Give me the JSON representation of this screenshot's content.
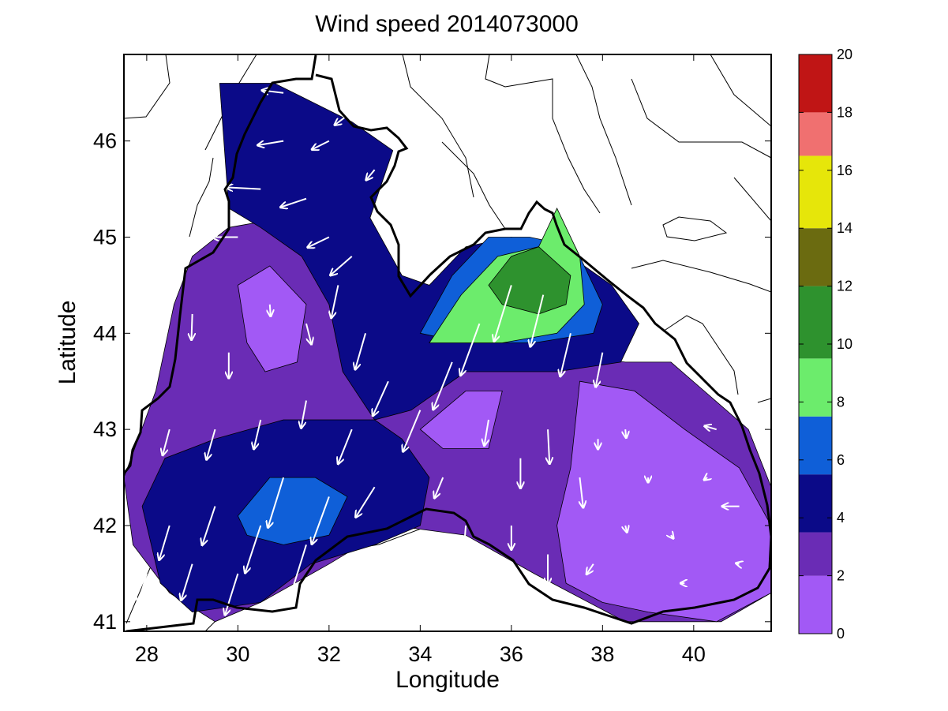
{
  "chart_data": {
    "type": "contour-quiver",
    "title": "Wind speed 2014073000",
    "xlabel": "Longitude",
    "ylabel": "Latitude",
    "xlim": [
      27.5,
      41.7
    ],
    "ylim": [
      40.9,
      46.9
    ],
    "x_ticks": [
      28,
      30,
      32,
      34,
      36,
      38,
      40
    ],
    "x_tick_labels": [
      "28",
      "30",
      "32",
      "34",
      "36",
      "38",
      "40"
    ],
    "y_ticks": [
      41,
      42,
      43,
      44,
      45,
      46
    ],
    "y_tick_labels": [
      "41",
      "42",
      "43",
      "44",
      "45",
      "46"
    ],
    "grid": false,
    "colorbar": {
      "min": 0,
      "max": 20,
      "ticks": [
        0,
        2,
        4,
        6,
        8,
        10,
        12,
        14,
        16,
        18,
        20
      ],
      "tick_labels": [
        "0",
        "2",
        "4",
        "6",
        "8",
        "10",
        "12",
        "14",
        "16",
        "18",
        "20"
      ],
      "bands": [
        {
          "from": 0,
          "to": 2,
          "color": "#a259f5"
        },
        {
          "from": 2,
          "to": 3.5,
          "color": "#6a2cb5"
        },
        {
          "from": 3.5,
          "to": 5.5,
          "color": "#0b0a88"
        },
        {
          "from": 5.5,
          "to": 7.5,
          "color": "#0f5fd8"
        },
        {
          "from": 7.5,
          "to": 9.5,
          "color": "#6cec6c"
        },
        {
          "from": 9.5,
          "to": 12,
          "color": "#2e922e"
        },
        {
          "from": 12,
          "to": 14,
          "color": "#6b6b10"
        },
        {
          "from": 14,
          "to": 16.5,
          "color": "#e6e60a"
        },
        {
          "from": 16.5,
          "to": 18,
          "color": "#f07070"
        },
        {
          "from": 18,
          "to": 20,
          "color": "#c01515"
        }
      ]
    },
    "speed_regions": [
      {
        "speed_class": "2-3.5",
        "color": "#6a2cb5",
        "polygon": [
          [
            27.5,
            42.5
          ],
          [
            28.2,
            43.4
          ],
          [
            28.6,
            44.3
          ],
          [
            29.0,
            44.8
          ],
          [
            29.8,
            45.1
          ],
          [
            31.0,
            45.2
          ],
          [
            32.5,
            44.9
          ],
          [
            33.2,
            44.5
          ],
          [
            34.0,
            44.1
          ],
          [
            35.0,
            44.0
          ],
          [
            37.0,
            43.8
          ],
          [
            38.5,
            43.7
          ],
          [
            39.5,
            43.7
          ],
          [
            41.2,
            43.0
          ],
          [
            41.7,
            42.4
          ],
          [
            41.7,
            41.3
          ],
          [
            40.6,
            41.0
          ],
          [
            38.5,
            41.0
          ],
          [
            36.5,
            41.5
          ],
          [
            35.0,
            41.9
          ],
          [
            33.4,
            42.0
          ],
          [
            32.0,
            41.6
          ],
          [
            30.5,
            41.2
          ],
          [
            29.5,
            41.0
          ],
          [
            28.5,
            41.3
          ],
          [
            27.7,
            41.8
          ]
        ]
      },
      {
        "speed_class": "3.5-5.5",
        "color": "#0b0a88",
        "polygon": [
          [
            28.3,
            41.4
          ],
          [
            29.0,
            41.1
          ],
          [
            30.5,
            41.2
          ],
          [
            31.6,
            41.6
          ],
          [
            33.0,
            41.8
          ],
          [
            34.0,
            42.0
          ],
          [
            34.2,
            42.5
          ],
          [
            33.6,
            42.9
          ],
          [
            33.0,
            43.1
          ],
          [
            31.0,
            43.1
          ],
          [
            29.5,
            42.9
          ],
          [
            28.4,
            42.7
          ],
          [
            27.9,
            42.2
          ]
        ]
      },
      {
        "speed_class": "3.5-5.5",
        "color": "#0b0a88",
        "polygon": [
          [
            29.6,
            46.6
          ],
          [
            30.8,
            46.6
          ],
          [
            32.5,
            46.2
          ],
          [
            33.4,
            45.9
          ],
          [
            32.9,
            45.2
          ],
          [
            33.6,
            44.6
          ],
          [
            34.2,
            44.5
          ],
          [
            35.0,
            44.9
          ],
          [
            36.0,
            45.0
          ],
          [
            37.0,
            44.9
          ],
          [
            38.2,
            44.5
          ],
          [
            38.8,
            44.1
          ],
          [
            38.4,
            43.7
          ],
          [
            37.0,
            43.6
          ],
          [
            35.0,
            43.6
          ],
          [
            33.8,
            43.2
          ],
          [
            33.0,
            43.1
          ],
          [
            32.3,
            43.6
          ],
          [
            32.0,
            44.3
          ],
          [
            31.4,
            44.8
          ],
          [
            30.5,
            45.1
          ],
          [
            29.8,
            45.3
          ]
        ]
      },
      {
        "speed_class": "0-2",
        "color": "#a259f5",
        "polygon": [
          [
            30.0,
            44.5
          ],
          [
            30.7,
            44.7
          ],
          [
            31.5,
            44.3
          ],
          [
            31.3,
            43.7
          ],
          [
            30.6,
            43.6
          ],
          [
            30.2,
            43.9
          ]
        ]
      },
      {
        "speed_class": "0-2",
        "color": "#a259f5",
        "polygon": [
          [
            34.0,
            43.0
          ],
          [
            35.0,
            43.4
          ],
          [
            35.8,
            43.4
          ],
          [
            35.5,
            42.8
          ],
          [
            34.5,
            42.8
          ]
        ]
      },
      {
        "speed_class": "0-2",
        "color": "#a259f5",
        "polygon": [
          [
            37.5,
            43.5
          ],
          [
            38.7,
            43.4
          ],
          [
            39.8,
            43.0
          ],
          [
            41.0,
            42.6
          ],
          [
            41.7,
            42.0
          ],
          [
            41.7,
            41.3
          ],
          [
            40.5,
            41.0
          ],
          [
            39.0,
            41.1
          ],
          [
            38.0,
            41.2
          ],
          [
            37.2,
            41.4
          ],
          [
            37.0,
            42.0
          ],
          [
            37.3,
            42.6
          ]
        ]
      },
      {
        "speed_class": "5.5-7.5",
        "color": "#0f5fd8",
        "polygon": [
          [
            30.0,
            42.1
          ],
          [
            30.7,
            42.5
          ],
          [
            31.7,
            42.5
          ],
          [
            32.4,
            42.3
          ],
          [
            32.0,
            41.9
          ],
          [
            31.0,
            41.8
          ],
          [
            30.2,
            41.9
          ]
        ]
      },
      {
        "speed_class": "5.5-7.5",
        "color": "#0f5fd8",
        "polygon": [
          [
            34.0,
            44.0
          ],
          [
            34.7,
            44.6
          ],
          [
            35.5,
            45.0
          ],
          [
            36.4,
            45.0
          ],
          [
            37.4,
            44.9
          ],
          [
            38.0,
            44.3
          ],
          [
            37.8,
            44.0
          ],
          [
            36.5,
            43.9
          ],
          [
            35.0,
            43.9
          ]
        ]
      },
      {
        "speed_class": "7.5-9.5",
        "color": "#6cec6c",
        "polygon": [
          [
            34.2,
            43.9
          ],
          [
            34.9,
            44.4
          ],
          [
            35.7,
            44.8
          ],
          [
            36.6,
            44.9
          ],
          [
            37.0,
            45.3
          ],
          [
            37.5,
            44.8
          ],
          [
            37.6,
            44.3
          ],
          [
            37.0,
            44.0
          ],
          [
            35.8,
            43.9
          ]
        ]
      },
      {
        "speed_class": "9.5-12",
        "color": "#2e922e",
        "polygon": [
          [
            35.5,
            44.5
          ],
          [
            36.0,
            44.8
          ],
          [
            36.6,
            44.9
          ],
          [
            37.3,
            44.6
          ],
          [
            37.2,
            44.3
          ],
          [
            36.6,
            44.2
          ],
          [
            35.8,
            44.3
          ]
        ]
      }
    ],
    "wind_vectors": [
      {
        "lon": 28.0,
        "lat": 41.5,
        "u": -1.0,
        "v": -3.5
      },
      {
        "lon": 28.5,
        "lat": 42.0,
        "u": -1.2,
        "v": -4.0
      },
      {
        "lon": 29.0,
        "lat": 41.6,
        "u": -1.3,
        "v": -4.2
      },
      {
        "lon": 29.5,
        "lat": 42.2,
        "u": -1.5,
        "v": -4.5
      },
      {
        "lon": 30.0,
        "lat": 41.5,
        "u": -1.5,
        "v": -4.8
      },
      {
        "lon": 30.5,
        "lat": 42.0,
        "u": -1.8,
        "v": -5.5
      },
      {
        "lon": 31.0,
        "lat": 42.5,
        "u": -1.8,
        "v": -5.8
      },
      {
        "lon": 31.5,
        "lat": 41.8,
        "u": -1.8,
        "v": -5.8
      },
      {
        "lon": 32.0,
        "lat": 42.3,
        "u": -2.0,
        "v": -5.5
      },
      {
        "lon": 32.5,
        "lat": 41.6,
        "u": -2.0,
        "v": -4.5
      },
      {
        "lon": 33.0,
        "lat": 42.4,
        "u": -2.2,
        "v": -3.5
      },
      {
        "lon": 28.5,
        "lat": 43.0,
        "u": -0.8,
        "v": -3.0
      },
      {
        "lon": 29.5,
        "lat": 43.0,
        "u": -1.0,
        "v": -3.5
      },
      {
        "lon": 30.5,
        "lat": 43.1,
        "u": -0.8,
        "v": -3.4
      },
      {
        "lon": 31.5,
        "lat": 43.3,
        "u": -0.6,
        "v": -3.2
      },
      {
        "lon": 32.5,
        "lat": 43.0,
        "u": -1.6,
        "v": -4.0
      },
      {
        "lon": 29.0,
        "lat": 44.2,
        "u": -0.1,
        "v": -3.0
      },
      {
        "lon": 29.8,
        "lat": 43.8,
        "u": 0.0,
        "v": -3.0
      },
      {
        "lon": 30.7,
        "lat": 44.3,
        "u": 0.1,
        "v": -1.4
      },
      {
        "lon": 31.5,
        "lat": 44.1,
        "u": 0.6,
        "v": -2.4
      },
      {
        "lon": 32.2,
        "lat": 44.5,
        "u": -0.8,
        "v": -3.8
      },
      {
        "lon": 32.8,
        "lat": 44.0,
        "u": -1.2,
        "v": -4.2
      },
      {
        "lon": 33.3,
        "lat": 43.5,
        "u": -1.8,
        "v": -4.0
      },
      {
        "lon": 30.0,
        "lat": 45.0,
        "u": -3.0,
        "v": 0.0
      },
      {
        "lon": 30.5,
        "lat": 45.5,
        "u": -4.0,
        "v": 0.2
      },
      {
        "lon": 31.5,
        "lat": 45.4,
        "u": -3.0,
        "v": -1.0
      },
      {
        "lon": 32.0,
        "lat": 45.0,
        "u": -2.5,
        "v": -1.2
      },
      {
        "lon": 32.5,
        "lat": 44.8,
        "u": -2.5,
        "v": -2.2
      },
      {
        "lon": 31.0,
        "lat": 46.0,
        "u": -3.0,
        "v": -0.5
      },
      {
        "lon": 32.0,
        "lat": 46.0,
        "u": -2.0,
        "v": -1.0
      },
      {
        "lon": 32.5,
        "lat": 46.3,
        "u": -2.0,
        "v": -1.5
      },
      {
        "lon": 31.0,
        "lat": 46.5,
        "u": -2.5,
        "v": 0.3
      },
      {
        "lon": 33.0,
        "lat": 45.7,
        "u": -1.0,
        "v": -1.2
      },
      {
        "lon": 34.0,
        "lat": 43.2,
        "u": -2.0,
        "v": -4.8
      },
      {
        "lon": 34.7,
        "lat": 43.7,
        "u": -2.2,
        "v": -5.5
      },
      {
        "lon": 35.3,
        "lat": 44.1,
        "u": -2.2,
        "v": -6.0
      },
      {
        "lon": 36.0,
        "lat": 44.5,
        "u": -2.0,
        "v": -6.5
      },
      {
        "lon": 36.7,
        "lat": 44.4,
        "u": -1.5,
        "v": -6.0
      },
      {
        "lon": 37.3,
        "lat": 44.0,
        "u": -1.2,
        "v": -5.0
      },
      {
        "lon": 38.0,
        "lat": 43.8,
        "u": -0.8,
        "v": -4.0
      },
      {
        "lon": 35.5,
        "lat": 43.1,
        "u": -0.5,
        "v": -3.0
      },
      {
        "lon": 36.2,
        "lat": 42.7,
        "u": 0.0,
        "v": -3.5
      },
      {
        "lon": 36.8,
        "lat": 43.0,
        "u": 0.2,
        "v": -4.0
      },
      {
        "lon": 37.5,
        "lat": 42.5,
        "u": 0.4,
        "v": -3.5
      },
      {
        "lon": 34.5,
        "lat": 42.5,
        "u": -1.0,
        "v": -2.4
      },
      {
        "lon": 35.0,
        "lat": 42.0,
        "u": -0.2,
        "v": -2.5
      },
      {
        "lon": 36.0,
        "lat": 42.0,
        "u": 0.0,
        "v": -2.8
      },
      {
        "lon": 36.8,
        "lat": 41.7,
        "u": 0.0,
        "v": -3.5
      },
      {
        "lon": 37.8,
        "lat": 41.6,
        "u": -0.8,
        "v": -1.2
      },
      {
        "lon": 38.5,
        "lat": 42.0,
        "u": 0.2,
        "v": -0.8
      },
      {
        "lon": 39.0,
        "lat": 42.5,
        "u": 0.0,
        "v": -0.6
      },
      {
        "lon": 39.5,
        "lat": 41.9,
        "u": 0.3,
        "v": -0.4
      },
      {
        "lon": 40.3,
        "lat": 42.5,
        "u": -0.4,
        "v": -0.3
      },
      {
        "lon": 41.0,
        "lat": 42.2,
        "u": -2.0,
        "v": 0.0
      },
      {
        "lon": 40.5,
        "lat": 43.0,
        "u": -1.4,
        "v": 0.4
      },
      {
        "lon": 41.0,
        "lat": 41.6,
        "u": -0.4,
        "v": 0.1
      },
      {
        "lon": 39.8,
        "lat": 41.4,
        "u": -0.5,
        "v": 0.0
      },
      {
        "lon": 38.5,
        "lat": 43.0,
        "u": 0.1,
        "v": -1.0
      },
      {
        "lon": 37.9,
        "lat": 42.9,
        "u": 0.0,
        "v": -1.2
      }
    ]
  }
}
